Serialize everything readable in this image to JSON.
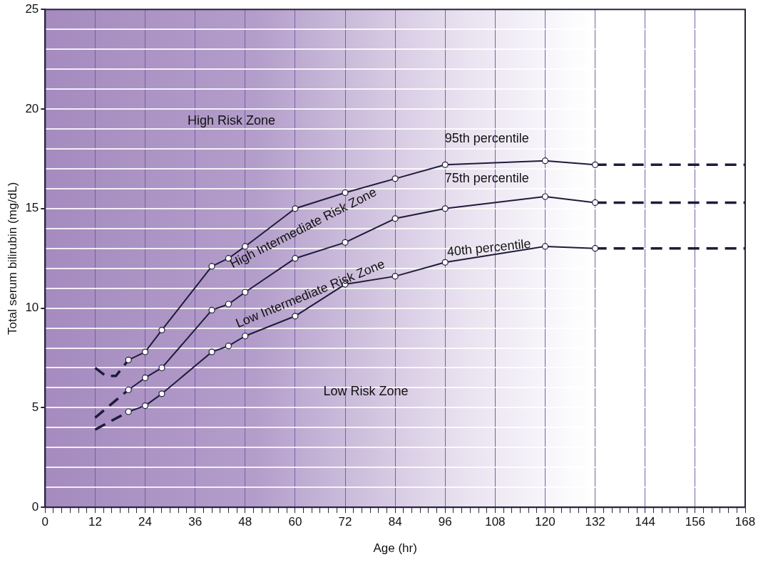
{
  "chart_data": {
    "type": "line",
    "xlabel": "Age (hr)",
    "ylabel": "Total serum bilirubin (mg/dL)",
    "xlim": [
      0,
      168
    ],
    "ylim": [
      0,
      25
    ],
    "xticks": [
      0,
      {
        "value": 2,
        "label": null
      },
      {
        "value": 4,
        "label": null
      },
      {
        "value": 6,
        "label": null
      },
      {
        "value": 8,
        "label": null
      },
      {
        "value": 10,
        "label": null
      },
      12,
      {
        "value": 14,
        "label": null
      },
      {
        "value": 16,
        "label": null
      },
      {
        "value": 18,
        "label": null
      },
      {
        "value": 20,
        "label": null
      },
      {
        "value": 22,
        "label": null
      },
      24,
      {
        "value": 26,
        "label": null
      },
      {
        "value": 28,
        "label": null
      },
      {
        "value": 30,
        "label": null
      },
      {
        "value": 32,
        "label": null
      },
      {
        "value": 34,
        "label": null
      },
      36,
      {
        "value": 38,
        "label": null
      },
      {
        "value": 40,
        "label": null
      },
      {
        "value": 42,
        "label": null
      },
      {
        "value": 44,
        "label": null
      },
      {
        "value": 46,
        "label": null
      },
      48,
      {
        "value": 50,
        "label": null
      },
      {
        "value": 52,
        "label": null
      },
      {
        "value": 54,
        "label": null
      },
      {
        "value": 56,
        "label": null
      },
      {
        "value": 58,
        "label": null
      },
      60,
      {
        "value": 62,
        "label": null
      },
      {
        "value": 64,
        "label": null
      },
      {
        "value": 66,
        "label": null
      },
      {
        "value": 68,
        "label": null
      },
      {
        "value": 70,
        "label": null
      },
      72,
      {
        "value": 74,
        "label": null
      },
      {
        "value": 76,
        "label": null
      },
      {
        "value": 78,
        "label": null
      },
      {
        "value": 80,
        "label": null
      },
      {
        "value": 82,
        "label": null
      },
      84,
      {
        "value": 86,
        "label": null
      },
      {
        "value": 88,
        "label": null
      },
      {
        "value": 90,
        "label": null
      },
      {
        "value": 92,
        "label": null
      },
      {
        "value": 94,
        "label": null
      },
      96,
      {
        "value": 98,
        "label": null
      },
      {
        "value": 100,
        "label": null
      },
      {
        "value": 102,
        "label": null
      },
      {
        "value": 104,
        "label": null
      },
      {
        "value": 106,
        "label": null
      },
      108,
      {
        "value": 110,
        "label": null
      },
      {
        "value": 112,
        "label": null
      },
      {
        "value": 114,
        "label": null
      },
      {
        "value": 116,
        "label": null
      },
      {
        "value": 118,
        "label": null
      },
      120,
      {
        "value": 122,
        "label": null
      },
      {
        "value": 124,
        "label": null
      },
      {
        "value": 126,
        "label": null
      },
      {
        "value": 128,
        "label": null
      },
      {
        "value": 130,
        "label": null
      },
      132,
      {
        "value": 134,
        "label": null
      },
      {
        "value": 136,
        "label": null
      },
      {
        "value": 138,
        "label": null
      },
      {
        "value": 140,
        "label": null
      },
      {
        "value": 142,
        "label": null
      },
      144,
      {
        "value": 146,
        "label": null
      },
      {
        "value": 148,
        "label": null
      },
      {
        "value": 150,
        "label": null
      },
      {
        "value": 152,
        "label": null
      },
      {
        "value": 154,
        "label": null
      },
      156,
      {
        "value": 158,
        "label": null
      },
      {
        "value": 160,
        "label": null
      },
      {
        "value": 162,
        "label": null
      },
      {
        "value": 164,
        "label": null
      },
      {
        "value": 166,
        "label": null
      },
      168
    ],
    "yticks": [
      0,
      {
        "value": 1,
        "label": null
      },
      {
        "value": 2,
        "label": null
      },
      {
        "value": 3,
        "label": null
      },
      {
        "value": 4,
        "label": null
      },
      5,
      {
        "value": 6,
        "label": null
      },
      {
        "value": 7,
        "label": null
      },
      {
        "value": 8,
        "label": null
      },
      {
        "value": 9,
        "label": null
      },
      10,
      {
        "value": 11,
        "label": null
      },
      {
        "value": 12,
        "label": null
      },
      {
        "value": 13,
        "label": null
      },
      {
        "value": 14,
        "label": null
      },
      15,
      {
        "value": 16,
        "label": null
      },
      {
        "value": 17,
        "label": null
      },
      {
        "value": 18,
        "label": null
      },
      {
        "value": 19,
        "label": null
      },
      20,
      {
        "value": 21,
        "label": null
      },
      {
        "value": 22,
        "label": null
      },
      {
        "value": 23,
        "label": null
      },
      {
        "value": 24,
        "label": null
      },
      25
    ],
    "grid": true,
    "legend": false,
    "marker": "circle",
    "line_style": "solid",
    "series": [
      {
        "color": "#1f1b3a",
        "x": [
          20,
          24,
          28,
          40,
          44,
          48,
          60,
          72,
          84,
          96,
          120,
          132
        ],
        "values": [
          7.4,
          7.8,
          8.9,
          12.1,
          12.5,
          13.1,
          15.0,
          15.8,
          16.5,
          17.2,
          17.4,
          17.2
        ]
      },
      {
        "color": "#1f1b3a",
        "x": [
          12,
          14.5,
          17,
          20
        ],
        "values": [
          7.0,
          6.6,
          6.6,
          7.4
        ],
        "line_style": "dashed",
        "marker": "none"
      },
      {
        "color": "#1f1b3a",
        "x": [
          132,
          168
        ],
        "values": [
          17.2,
          17.2
        ],
        "line_style": "dashed",
        "marker": "none"
      },
      {
        "color": "#1f1b3a",
        "x": [
          20,
          24,
          28,
          40,
          44,
          48,
          60,
          72,
          84,
          96,
          120,
          132
        ],
        "values": [
          5.9,
          6.5,
          7.0,
          9.9,
          10.2,
          10.8,
          12.5,
          13.3,
          14.5,
          15.0,
          15.6,
          15.3
        ]
      },
      {
        "color": "#1f1b3a",
        "x": [
          12,
          20
        ],
        "values": [
          4.5,
          5.9
        ],
        "line_style": "dashed",
        "marker": "none"
      },
      {
        "color": "#1f1b3a",
        "x": [
          132,
          168
        ],
        "values": [
          15.3,
          15.3
        ],
        "line_style": "dashed",
        "marker": "none"
      },
      {
        "color": "#1f1b3a",
        "x": [
          20,
          24,
          28,
          40,
          44,
          48,
          60,
          72,
          84,
          96,
          120,
          132
        ],
        "values": [
          4.8,
          5.1,
          5.7,
          7.8,
          8.1,
          8.6,
          9.6,
          11.2,
          11.6,
          12.3,
          13.1,
          13.0
        ]
      },
      {
        "color": "#1f1b3a",
        "x": [
          12,
          20
        ],
        "values": [
          3.9,
          4.8
        ],
        "line_style": "dashed",
        "marker": "none"
      },
      {
        "color": "#1f1b3a",
        "x": [
          132,
          168
        ],
        "values": [
          13.0,
          13.0
        ],
        "line_style": "dashed",
        "marker": "none"
      }
    ],
    "annotations": [
      "95th percentile",
      "75th percentile",
      "40th percentile",
      "High Risk Zone",
      "High Intermediate Risk Zone",
      "Low Intermediate Risk Zone",
      "Low Risk Zone"
    ]
  }
}
